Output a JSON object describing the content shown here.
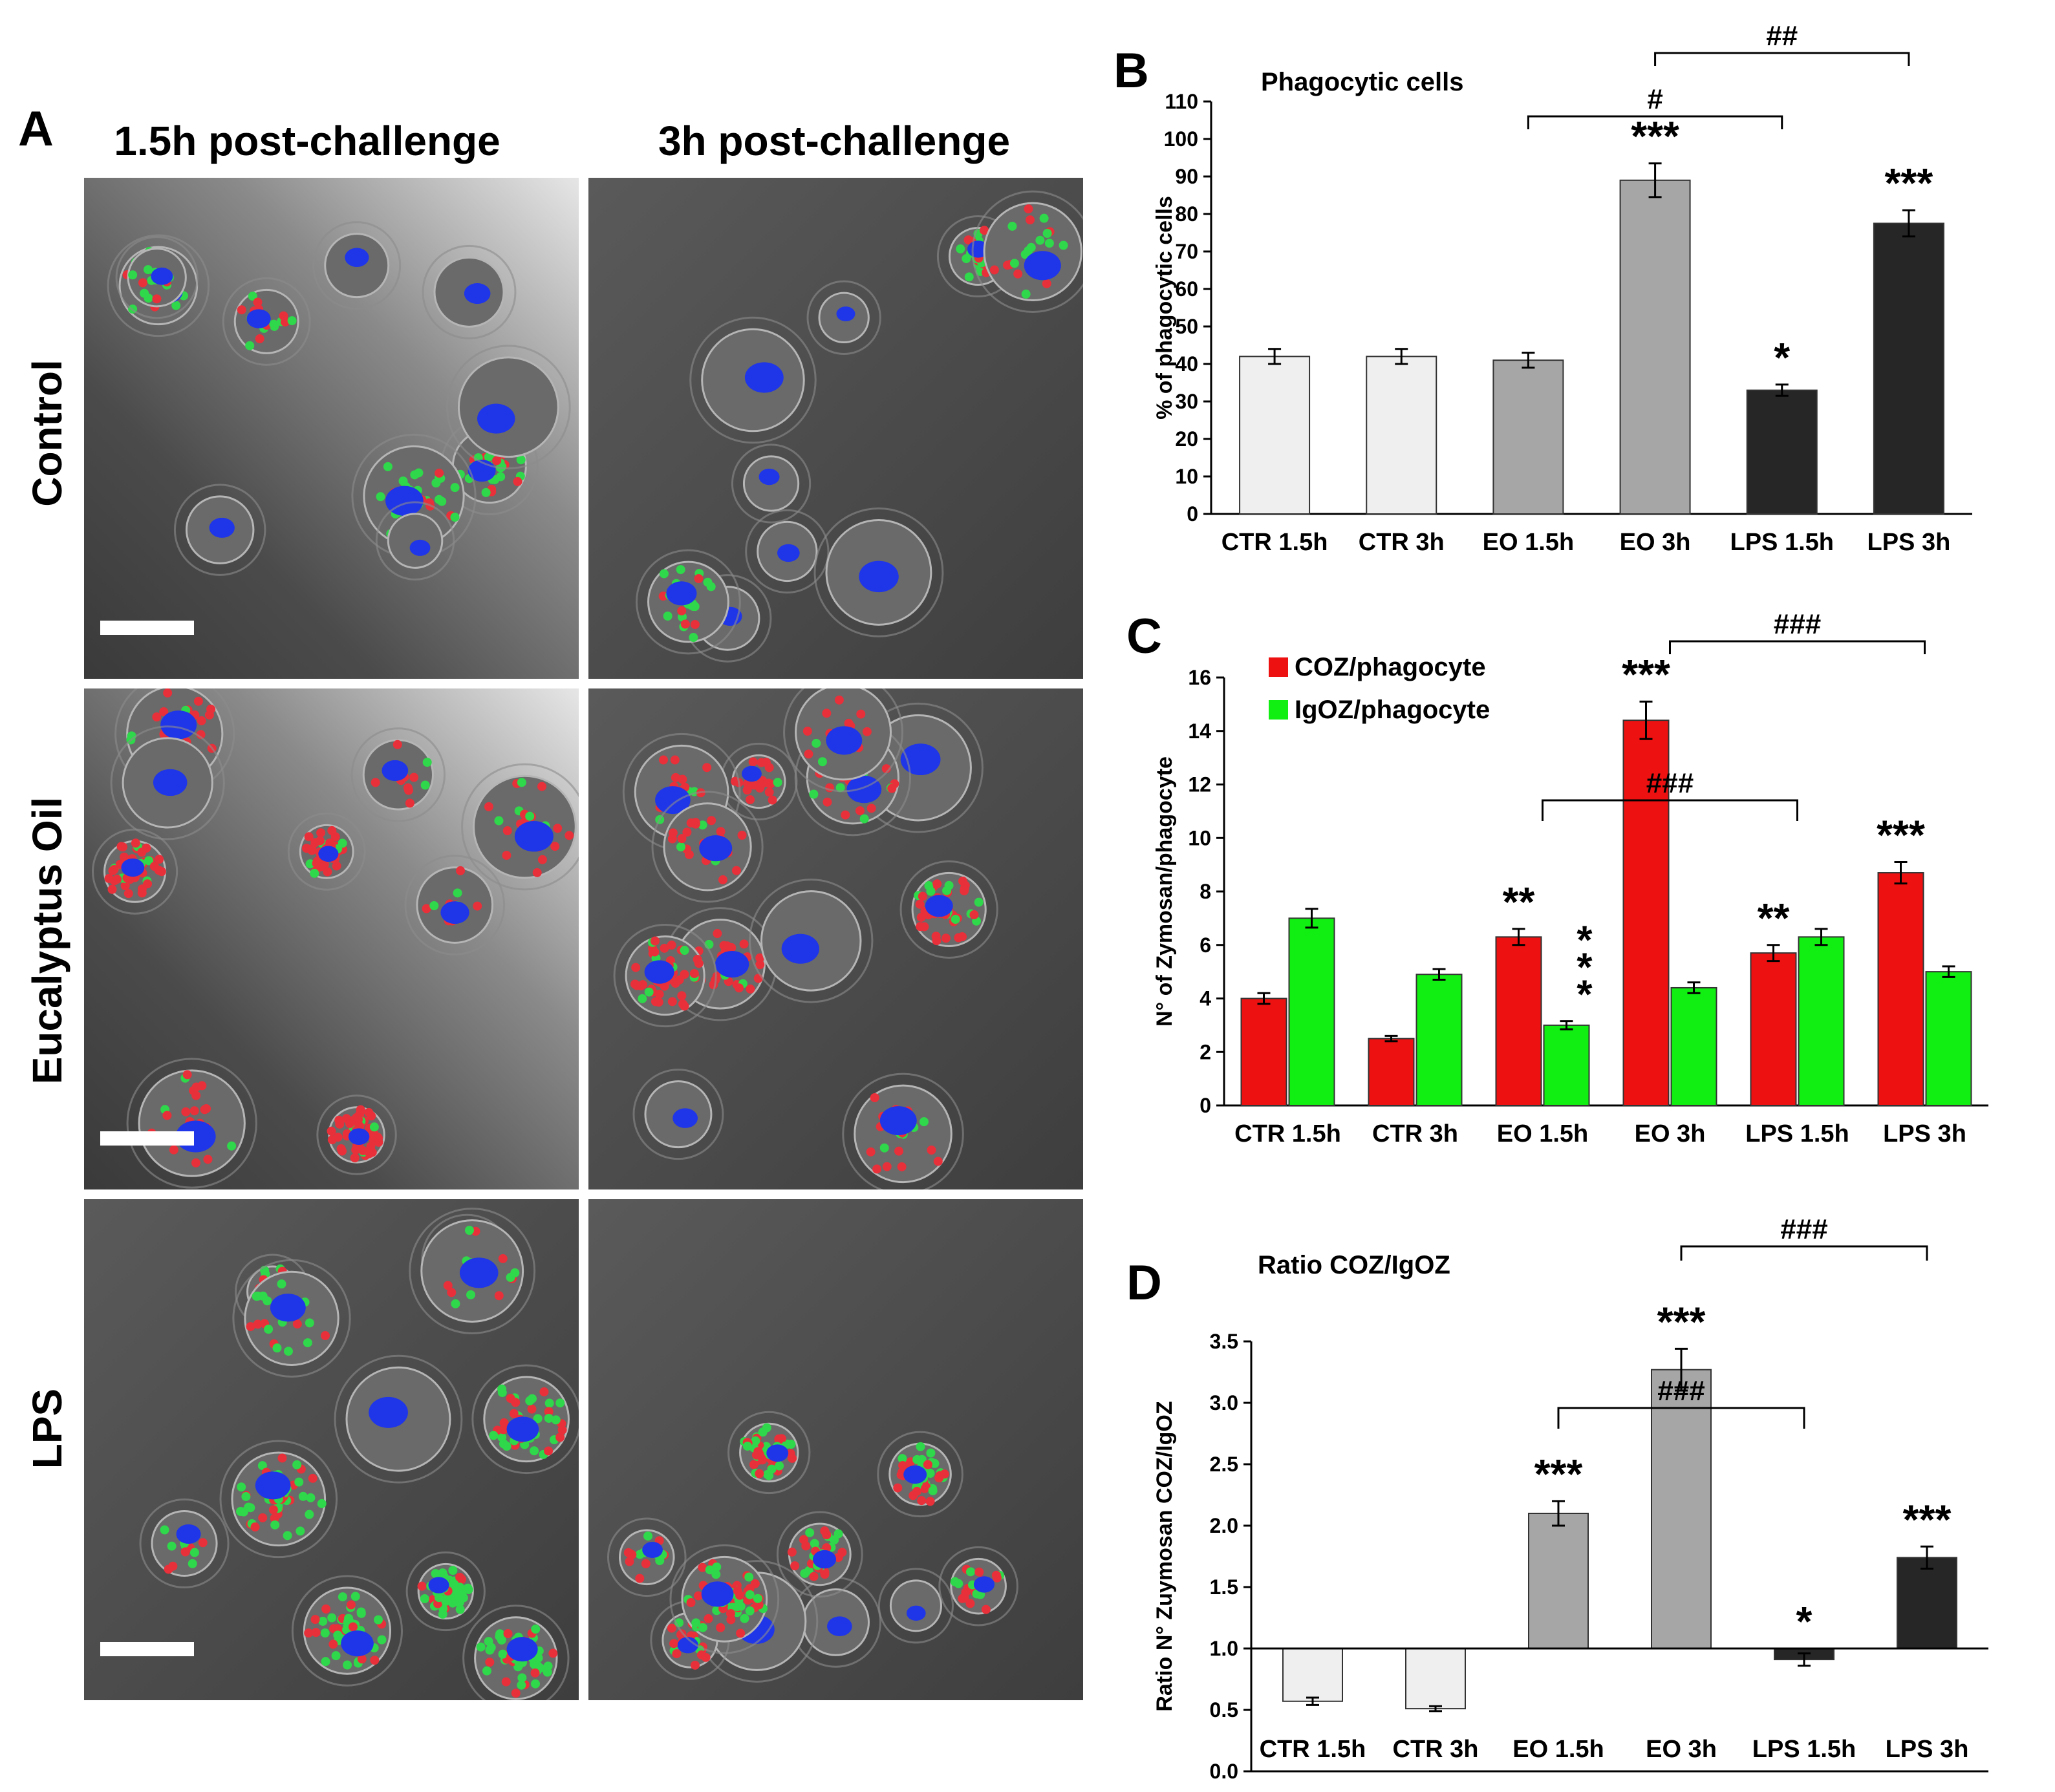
{
  "panelA": {
    "letter": "A",
    "columns": [
      "1.5h post-challenge",
      "3h post-challenge"
    ],
    "rows": [
      "Control",
      "Eucalyptus Oil",
      "LPS"
    ],
    "colors": {
      "nucleus": "#1f35e8",
      "red_zymosan": "#e8303a",
      "green_zymosan": "#2fd84a",
      "background": "#4a4a4a"
    }
  },
  "chart_data": [
    {
      "panel": "B",
      "type": "bar",
      "title": "Phagocytic cells",
      "ylabel": "% of phagocytic cells",
      "xlabel": "",
      "categories": [
        "CTR 1.5h",
        "CTR 3h",
        "EO 1.5h",
        "EO 3h",
        "LPS 1.5h",
        "LPS 3h"
      ],
      "values": [
        42,
        42,
        41,
        89,
        33,
        77.5
      ],
      "errors": [
        2,
        2,
        2,
        4.5,
        1.5,
        3.5
      ],
      "bar_colors": [
        "#efefef",
        "#efefef",
        "#a6a6a6",
        "#a6a6a6",
        "#262626",
        "#262626"
      ],
      "ylim": [
        0,
        110
      ],
      "yticks": [
        0,
        10,
        20,
        30,
        40,
        50,
        60,
        70,
        80,
        90,
        100,
        110
      ],
      "significance": [
        {
          "category": "EO 3h",
          "label": "***"
        },
        {
          "category": "LPS 1.5h",
          "label": "*"
        },
        {
          "category": "LPS 3h",
          "label": "***"
        }
      ],
      "brackets": [
        {
          "from": "EO 1.5h",
          "to": "LPS 1.5h",
          "label": "#"
        },
        {
          "from": "EO 3h",
          "to": "LPS 3h",
          "label": "##"
        }
      ]
    },
    {
      "panel": "C",
      "type": "bar",
      "title": "",
      "ylabel": "N° of Zymosan/phagocyte",
      "xlabel": "",
      "categories": [
        "CTR 1.5h",
        "CTR 3h",
        "EO 1.5h",
        "EO 3h",
        "LPS 1.5h",
        "LPS 3h"
      ],
      "series": [
        {
          "name": "COZ/phagocyte",
          "color": "#ee1111",
          "values": [
            4.0,
            2.5,
            6.3,
            14.4,
            5.7,
            8.7
          ],
          "errors": [
            0.2,
            0.1,
            0.3,
            0.7,
            0.3,
            0.4
          ],
          "significance": [
            "",
            "",
            "**",
            "***",
            "**",
            "***"
          ]
        },
        {
          "name": "IgOZ/phagocyte",
          "color": "#11ee11",
          "values": [
            7.0,
            4.9,
            3.0,
            4.4,
            6.3,
            5.0
          ],
          "errors": [
            0.35,
            0.2,
            0.15,
            0.2,
            0.3,
            0.2
          ],
          "significance": [
            "",
            "",
            "***",
            "",
            "",
            ""
          ]
        }
      ],
      "ylim": [
        0,
        16
      ],
      "yticks": [
        0,
        2,
        4,
        6,
        8,
        10,
        12,
        14,
        16
      ],
      "legend": "top-left",
      "brackets": [
        {
          "from": "EO 1.5h",
          "to": "LPS 1.5h",
          "label": "###"
        },
        {
          "from": "EO 3h",
          "to": "LPS 3h",
          "label": "###"
        }
      ]
    },
    {
      "panel": "D",
      "type": "bar",
      "title": "Ratio COZ/IgOZ",
      "ylabel": "Ratio N° Zuymosan COZ/IgOZ",
      "xlabel": "",
      "categories": [
        "CTR 1.5h",
        "CTR 3h",
        "EO 1.5h",
        "EO 3h",
        "LPS 1.5h",
        "LPS 3h"
      ],
      "values": [
        0.57,
        0.51,
        2.1,
        3.27,
        0.91,
        1.74
      ],
      "errors": [
        0.03,
        0.02,
        0.1,
        0.17,
        0.05,
        0.09
      ],
      "baseline": 1.0,
      "bar_colors": [
        "#efefef",
        "#efefef",
        "#a6a6a6",
        "#a6a6a6",
        "#262626",
        "#262626"
      ],
      "ylim": [
        0,
        3.5
      ],
      "yticks": [
        "0.0",
        "0.5",
        "1.0",
        "1.5",
        "2.0",
        "2.5",
        "3.0",
        "3.5"
      ],
      "significance": [
        {
          "category": "EO 1.5h",
          "label": "***"
        },
        {
          "category": "EO 3h",
          "label": "***"
        },
        {
          "category": "LPS 1.5h",
          "label": "*"
        },
        {
          "category": "LPS 3h",
          "label": "***"
        }
      ],
      "brackets": [
        {
          "from": "EO 1.5h",
          "to": "LPS 1.5h",
          "label": "###"
        },
        {
          "from": "EO 3h",
          "to": "LPS 3h",
          "label": "###"
        }
      ]
    }
  ]
}
